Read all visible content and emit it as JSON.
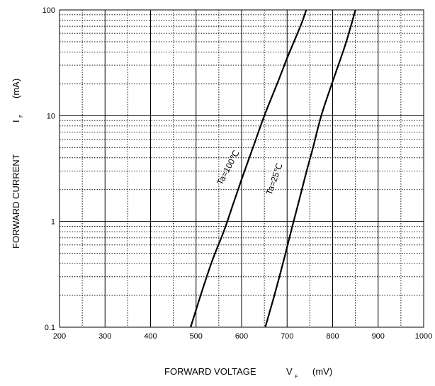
{
  "chart_data": {
    "type": "line",
    "x_axis": {
      "title": "FORWARD VOLTAGE",
      "symbol": "V",
      "subscript": "F",
      "unit": "(mV)",
      "range": [
        200,
        1000
      ],
      "ticks": [
        200,
        300,
        400,
        500,
        600,
        700,
        800,
        900,
        1000
      ],
      "tick_labels": [
        "200",
        "300",
        "400",
        "500",
        "600",
        "700",
        "800",
        "900",
        "1000"
      ],
      "minor_step": 50
    },
    "y_axis": {
      "title": "FORWARD CURRENT",
      "symbol": "I",
      "subscript": "F",
      "unit": "(mA)",
      "scale": "log",
      "range": [
        0.1,
        100
      ],
      "ticks": [
        0.1,
        1,
        10,
        100
      ],
      "tick_labels": [
        "0.1",
        "1",
        "10",
        "100"
      ]
    },
    "grid": {
      "major": "solid",
      "minor": "dotted"
    },
    "series": [
      {
        "name": "Ta=100℃",
        "points": [
          [
            488,
            0.1
          ],
          [
            510,
            0.2
          ],
          [
            535,
            0.42
          ],
          [
            562,
            0.83
          ],
          [
            580,
            1.4
          ],
          [
            600,
            2.5
          ],
          [
            625,
            5
          ],
          [
            650,
            10
          ],
          [
            680,
            21
          ],
          [
            700,
            35
          ],
          [
            715,
            50
          ],
          [
            732,
            75
          ],
          [
            742,
            100
          ]
        ]
      },
      {
        "name": "Ta=25℃",
        "points": [
          [
            652,
            0.1
          ],
          [
            672,
            0.2
          ],
          [
            692,
            0.42
          ],
          [
            710,
            0.85
          ],
          [
            725,
            1.5
          ],
          [
            742,
            2.9
          ],
          [
            757,
            5
          ],
          [
            775,
            10
          ],
          [
            800,
            21
          ],
          [
            818,
            35
          ],
          [
            830,
            50
          ],
          [
            842,
            75
          ],
          [
            850,
            100
          ]
        ]
      }
    ]
  }
}
